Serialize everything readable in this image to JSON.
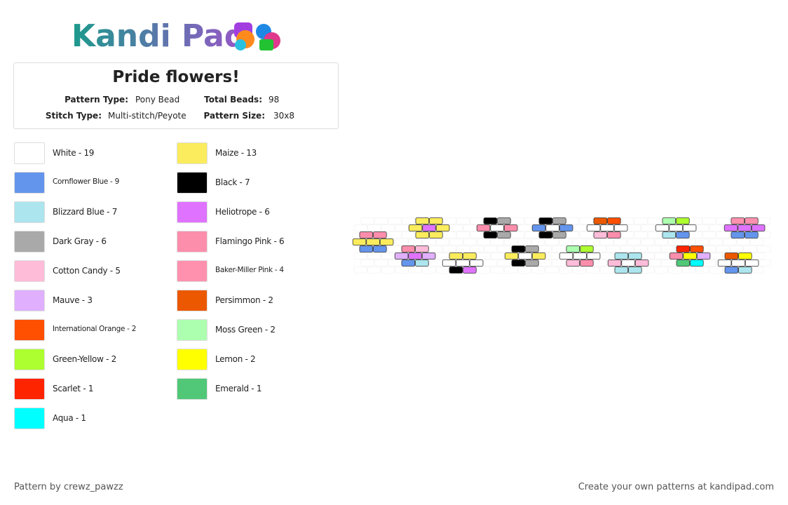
{
  "header": {
    "logo": "Kandi Pad"
  },
  "pattern": {
    "title": "Pride flowers!",
    "fields": [
      {
        "label": "Pattern Type:",
        "value": "Pony Bead"
      },
      {
        "label": "Total Beads:",
        "value": "98"
      },
      {
        "label": "Stitch Type:",
        "value": "Multi-stitch/Peyote"
      },
      {
        "label": "Pattern Size:",
        "value": "30x8"
      }
    ]
  },
  "colors": [
    [
      {
        "label": "White - 19",
        "color": "#ffffff"
      },
      {
        "label": "Cornflower Blue - 9",
        "color": "#6495ed"
      },
      {
        "label": "Blizzard Blue - 7",
        "color": "#ace5ee"
      },
      {
        "label": "Dark Gray - 6",
        "color": "#a9a9a9"
      },
      {
        "label": "Cotton Candy - 5",
        "color": "#ffbcd9"
      },
      {
        "label": "Mauve - 3",
        "color": "#e0b0ff"
      },
      {
        "label": "International Orange - 2",
        "color": "#ff4f00"
      },
      {
        "label": "Green-Yellow - 2",
        "color": "#adff2f"
      },
      {
        "label": "Scarlet - 1",
        "color": "#ff2400"
      },
      {
        "label": "Aqua - 1",
        "color": "#00ffff"
      }
    ],
    [
      {
        "label": "Maize - 13",
        "color": "#fbec5d"
      },
      {
        "label": "Black - 7",
        "color": "#000000"
      },
      {
        "label": "Heliotrope - 6",
        "color": "#df73ff"
      },
      {
        "label": "Flamingo Pink - 6",
        "color": "#fc8eac"
      },
      {
        "label": "Baker-Miller Pink - 4",
        "color": "#ff91af"
      },
      {
        "label": "Persimmon - 2",
        "color": "#ec5800"
      },
      {
        "label": "Moss Green - 2",
        "color": "#adffb0"
      },
      {
        "label": "Lemon - 2",
        "color": "#ffff00"
      },
      {
        "label": "Emerald - 1",
        "color": "#50c878"
      }
    ]
  ],
  "footer": {
    "credit": "Pattern by crewz_pawzz",
    "promo": "Create your own patterns at kandipad.com"
  }
}
